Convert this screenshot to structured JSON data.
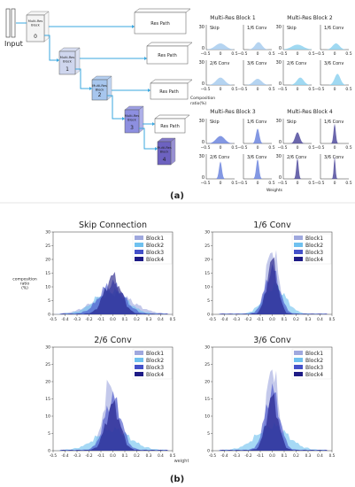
{
  "diagram": {
    "input_label": "Input",
    "blocks": [
      {
        "label": "Multi-Res\nBlock",
        "num": "0",
        "fill": "#f4f4f4"
      },
      {
        "label": "Multi-Res\nBlock",
        "num": "1",
        "fill": "#cfd6ee"
      },
      {
        "label": "Multi-Res\nBlock",
        "num": "2",
        "fill": "#a7c6ee"
      },
      {
        "label": "Multi-Res\nBlock",
        "num": "3",
        "fill": "#8d8fe0"
      },
      {
        "label": "Multi-Res\nBlock",
        "num": "4",
        "fill": "#6d62c0"
      }
    ],
    "res_path_label": "Res Path",
    "arrow_color": "#3aa7df"
  },
  "panel_a_label": "(a)",
  "panel_b_label": "(b)",
  "mini": {
    "ylabel": "Composition\nratio(%)",
    "xlabel": "Weights",
    "ytick": "30",
    "zero": "0",
    "xticks": [
      "−0.5",
      "0",
      "0.5"
    ],
    "blocks": [
      {
        "title": "Multi-Res Block 1",
        "color": "#a8cdee"
      },
      {
        "title": "Multi-Res Block 2",
        "color": "#8fd2f0"
      },
      {
        "title": "Multi-Res Block 3",
        "color": "#6d86de"
      },
      {
        "title": "Multi-Res Block 4",
        "color": "#514c9e"
      }
    ],
    "subplots": [
      "Skip",
      "1/6 Conv",
      "2/6 Conv",
      "3/6 Conv"
    ]
  },
  "chart_data": [
    {
      "type": "area",
      "title": "Skip Connection",
      "ylabel": "composition\nratio\n(%)",
      "ylim": [
        0,
        30
      ],
      "xlim": [
        -0.5,
        0.5
      ],
      "yticks": [
        0,
        5,
        10,
        15,
        20,
        25,
        30
      ],
      "xticks": [
        -0.5,
        -0.4,
        -0.3,
        -0.2,
        -0.1,
        0.0,
        0.1,
        0.2,
        0.3,
        0.4,
        0.5
      ],
      "legend": "top-right",
      "series": [
        {
          "name": "Block1",
          "color": "#9fa8de",
          "center": 0.0,
          "width": 0.16,
          "peak": 7.5
        },
        {
          "name": "Block2",
          "color": "#6fc1ef",
          "center": -0.02,
          "width": 0.13,
          "peak": 8.5
        },
        {
          "name": "Block3",
          "color": "#4451c9",
          "center": -0.01,
          "width": 0.1,
          "peak": 11.0
        },
        {
          "name": "Block4",
          "color": "#1d1a85",
          "center": 0.0,
          "width": 0.07,
          "peak": 13.5
        }
      ]
    },
    {
      "type": "area",
      "title": "1/6 Conv",
      "ylabel": "",
      "ylim": [
        0,
        30
      ],
      "xlim": [
        -0.5,
        0.5
      ],
      "yticks": [
        0,
        5,
        10,
        15,
        20,
        25,
        30
      ],
      "xticks": [
        -0.5,
        -0.4,
        -0.3,
        -0.2,
        -0.1,
        0.0,
        0.1,
        0.2,
        0.3,
        0.4,
        0.5
      ],
      "legend": "top-right",
      "series": [
        {
          "name": "Block1",
          "color": "#9fa8de",
          "center": 0.0,
          "width": 0.05,
          "peak": 24.0
        },
        {
          "name": "Block2",
          "color": "#6fc1ef",
          "center": 0.02,
          "width": 0.09,
          "peak": 10.0
        },
        {
          "name": "Block3",
          "color": "#4451c9",
          "center": 0.0,
          "width": 0.06,
          "peak": 16.0
        },
        {
          "name": "Block4",
          "color": "#1d1a85",
          "center": 0.0,
          "width": 0.045,
          "peak": 19.0
        }
      ]
    },
    {
      "type": "area",
      "title": "2/6 Conv",
      "ylabel": "",
      "ylim": [
        0,
        30
      ],
      "xlim": [
        -0.5,
        0.5
      ],
      "yticks": [
        0,
        5,
        10,
        15,
        20,
        25,
        30
      ],
      "xticks": [
        -0.5,
        -0.4,
        -0.3,
        -0.2,
        -0.1,
        0.0,
        0.1,
        0.2,
        0.3,
        0.4,
        0.5
      ],
      "legend": "top-right",
      "series": [
        {
          "name": "Block1",
          "color": "#9fa8de",
          "center": -0.02,
          "width": 0.06,
          "peak": 19.0
        },
        {
          "name": "Block2",
          "color": "#6fc1ef",
          "center": 0.0,
          "width": 0.14,
          "peak": 6.0
        },
        {
          "name": "Block3",
          "color": "#4451c9",
          "center": 0.0,
          "width": 0.07,
          "peak": 15.0
        },
        {
          "name": "Block4",
          "color": "#1d1a85",
          "center": 0.0,
          "width": 0.06,
          "peak": 13.0
        }
      ]
    },
    {
      "type": "area",
      "title": "3/6 Conv",
      "ylabel": "",
      "ylim": [
        0,
        30
      ],
      "xlim": [
        -0.5,
        0.5
      ],
      "yticks": [
        0,
        5,
        10,
        15,
        20,
        25,
        30
      ],
      "xticks": [
        -0.5,
        -0.4,
        -0.3,
        -0.2,
        -0.1,
        0.0,
        0.1,
        0.2,
        0.3,
        0.4,
        0.5
      ],
      "legend": "top-right",
      "series": [
        {
          "name": "Block1",
          "color": "#9fa8de",
          "center": 0.0,
          "width": 0.045,
          "peak": 25.0
        },
        {
          "name": "Block2",
          "color": "#6fc1ef",
          "center": 0.0,
          "width": 0.13,
          "peak": 7.0
        },
        {
          "name": "Block3",
          "color": "#4451c9",
          "center": 0.0,
          "width": 0.06,
          "peak": 17.0
        },
        {
          "name": "Block4",
          "color": "#1d1a85",
          "center": 0.0,
          "width": 0.05,
          "peak": 15.0
        }
      ]
    }
  ],
  "weight_label": "weight"
}
